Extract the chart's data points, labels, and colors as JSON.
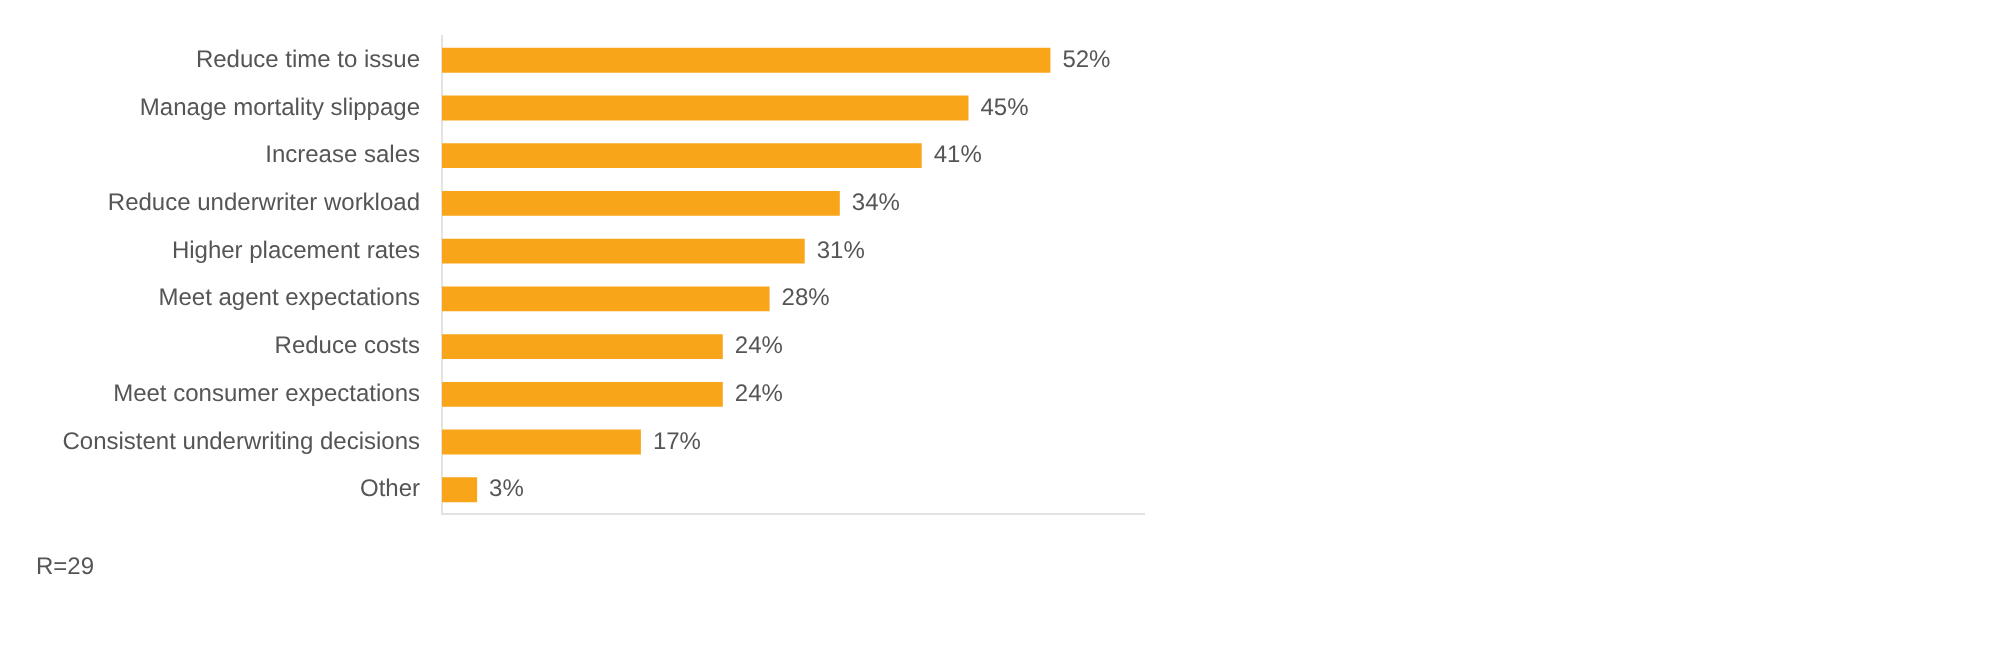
{
  "chart_data": {
    "type": "bar",
    "orientation": "horizontal",
    "categories": [
      "Reduce time to issue",
      "Manage mortality slippage",
      "Increase sales",
      "Reduce underwriter workload",
      "Higher placement rates",
      "Meet agent expectations",
      "Reduce costs",
      "Meet consumer expectations",
      "Consistent underwriting decisions",
      "Other"
    ],
    "values": [
      52,
      45,
      41,
      34,
      31,
      28,
      24,
      24,
      17,
      3
    ],
    "color": "#f9a51a",
    "value_labels": [
      "52%",
      "45%",
      "41%",
      "34%",
      "31%",
      "28%",
      "24%",
      "24%",
      "17%",
      "3%"
    ],
    "xlim": [
      0,
      60
    ],
    "tick_labels": "y",
    "grid": false,
    "legend": false,
    "annotations": [
      "R=29"
    ]
  }
}
